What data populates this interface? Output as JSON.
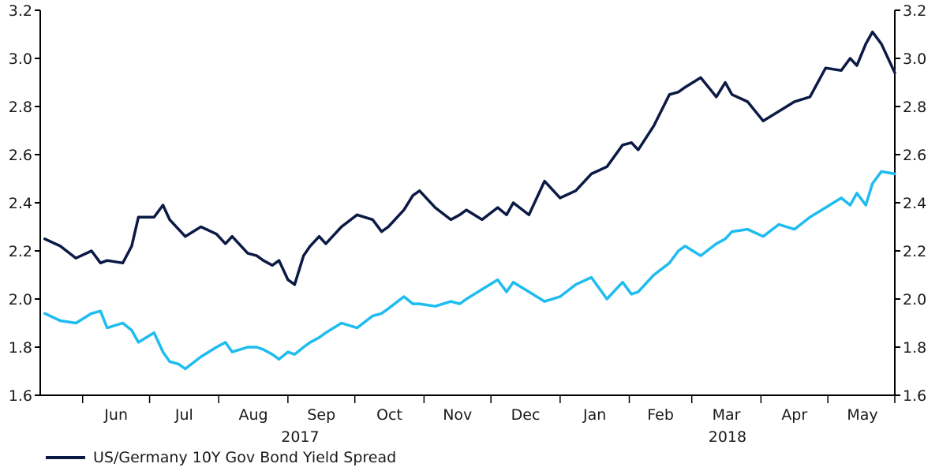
{
  "chart_data": {
    "type": "line",
    "ylim": [
      1.6,
      3.2
    ],
    "yticks": [
      "1.6",
      "1.8",
      "2.0",
      "2.2",
      "2.4",
      "2.6",
      "2.8",
      "3.0",
      "3.2"
    ],
    "month_labels": [
      "Jun",
      "Jul",
      "Aug",
      "Sep",
      "Oct",
      "Nov",
      "Dec",
      "Jan",
      "Feb",
      "Mar",
      "Apr",
      "May"
    ],
    "year_labels": [
      "2017",
      "2018"
    ],
    "grid": false,
    "legend": {
      "placement": "bottom-left",
      "entries": [
        "US/Germany 10Y Gov Bond Yield Spread"
      ]
    },
    "series": [
      {
        "name": "US/Germany 10Y Gov Bond Yield Spread",
        "color": "#0b1a45",
        "x": [
          "2017-05-15",
          "2017-05-22",
          "2017-05-29",
          "2017-06-05",
          "2017-06-09",
          "2017-06-12",
          "2017-06-19",
          "2017-06-23",
          "2017-06-26",
          "2017-07-03",
          "2017-07-07",
          "2017-07-10",
          "2017-07-14",
          "2017-07-17",
          "2017-07-24",
          "2017-07-31",
          "2017-08-04",
          "2017-08-07",
          "2017-08-14",
          "2017-08-18",
          "2017-08-21",
          "2017-08-25",
          "2017-08-28",
          "2017-09-01",
          "2017-09-04",
          "2017-09-08",
          "2017-09-11",
          "2017-09-15",
          "2017-09-18",
          "2017-09-25",
          "2017-10-02",
          "2017-10-09",
          "2017-10-13",
          "2017-10-16",
          "2017-10-23",
          "2017-10-27",
          "2017-10-30",
          "2017-11-06",
          "2017-11-13",
          "2017-11-17",
          "2017-11-20",
          "2017-11-27",
          "2017-12-04",
          "2017-12-08",
          "2017-12-11",
          "2017-12-18",
          "2017-12-25",
          "2018-01-01",
          "2018-01-08",
          "2018-01-15",
          "2018-01-22",
          "2018-01-29",
          "2018-02-02",
          "2018-02-05",
          "2018-02-12",
          "2018-02-19",
          "2018-02-23",
          "2018-02-26",
          "2018-03-05",
          "2018-03-12",
          "2018-03-16",
          "2018-03-19",
          "2018-03-26",
          "2018-04-02",
          "2018-04-09",
          "2018-04-16",
          "2018-04-23",
          "2018-04-30",
          "2018-05-07",
          "2018-05-11",
          "2018-05-14",
          "2018-05-18",
          "2018-05-21",
          "2018-05-25",
          "2018-05-31"
        ],
        "values": [
          2.25,
          2.22,
          2.17,
          2.2,
          2.15,
          2.16,
          2.15,
          2.22,
          2.34,
          2.34,
          2.39,
          2.33,
          2.29,
          2.26,
          2.3,
          2.27,
          2.23,
          2.26,
          2.19,
          2.18,
          2.16,
          2.14,
          2.16,
          2.08,
          2.06,
          2.18,
          2.22,
          2.26,
          2.23,
          2.3,
          2.35,
          2.33,
          2.28,
          2.3,
          2.37,
          2.43,
          2.45,
          2.38,
          2.33,
          2.35,
          2.37,
          2.33,
          2.38,
          2.35,
          2.4,
          2.35,
          2.49,
          2.42,
          2.45,
          2.52,
          2.55,
          2.64,
          2.65,
          2.62,
          2.72,
          2.85,
          2.86,
          2.88,
          2.92,
          2.84,
          2.9,
          2.85,
          2.82,
          2.74,
          2.78,
          2.82,
          2.84,
          2.96,
          2.95,
          3.0,
          2.97,
          3.06,
          3.11,
          3.06,
          2.94
        ]
      },
      {
        "color": "#1fbcf0",
        "x": [
          "2017-05-15",
          "2017-05-22",
          "2017-05-29",
          "2017-06-05",
          "2017-06-09",
          "2017-06-12",
          "2017-06-19",
          "2017-06-23",
          "2017-06-26",
          "2017-07-03",
          "2017-07-07",
          "2017-07-10",
          "2017-07-14",
          "2017-07-17",
          "2017-07-24",
          "2017-07-31",
          "2017-08-04",
          "2017-08-07",
          "2017-08-14",
          "2017-08-18",
          "2017-08-21",
          "2017-08-25",
          "2017-08-28",
          "2017-09-01",
          "2017-09-04",
          "2017-09-08",
          "2017-09-11",
          "2017-09-15",
          "2017-09-18",
          "2017-09-25",
          "2017-10-02",
          "2017-10-09",
          "2017-10-13",
          "2017-10-16",
          "2017-10-23",
          "2017-10-27",
          "2017-10-30",
          "2017-11-06",
          "2017-11-13",
          "2017-11-17",
          "2017-11-20",
          "2017-11-27",
          "2017-12-04",
          "2017-12-08",
          "2017-12-11",
          "2017-12-18",
          "2017-12-25",
          "2018-01-01",
          "2018-01-08",
          "2018-01-15",
          "2018-01-22",
          "2018-01-29",
          "2018-02-02",
          "2018-02-05",
          "2018-02-12",
          "2018-02-19",
          "2018-02-23",
          "2018-02-26",
          "2018-03-05",
          "2018-03-12",
          "2018-03-16",
          "2018-03-19",
          "2018-03-26",
          "2018-04-02",
          "2018-04-09",
          "2018-04-16",
          "2018-04-23",
          "2018-04-30",
          "2018-05-07",
          "2018-05-11",
          "2018-05-14",
          "2018-05-18",
          "2018-05-21",
          "2018-05-25",
          "2018-05-31"
        ],
        "values": [
          1.94,
          1.91,
          1.9,
          1.94,
          1.95,
          1.88,
          1.9,
          1.87,
          1.82,
          1.86,
          1.78,
          1.74,
          1.73,
          1.71,
          1.76,
          1.8,
          1.82,
          1.78,
          1.8,
          1.8,
          1.79,
          1.77,
          1.75,
          1.78,
          1.77,
          1.8,
          1.82,
          1.84,
          1.86,
          1.9,
          1.88,
          1.93,
          1.94,
          1.96,
          2.01,
          1.98,
          1.98,
          1.97,
          1.99,
          1.98,
          2.0,
          2.04,
          2.08,
          2.03,
          2.07,
          2.03,
          1.99,
          2.01,
          2.06,
          2.09,
          2.0,
          2.07,
          2.02,
          2.03,
          2.1,
          2.15,
          2.2,
          2.22,
          2.18,
          2.23,
          2.25,
          2.28,
          2.29,
          2.26,
          2.31,
          2.29,
          2.34,
          2.38,
          2.42,
          2.39,
          2.44,
          2.39,
          2.48,
          2.53,
          2.52
        ]
      }
    ]
  }
}
